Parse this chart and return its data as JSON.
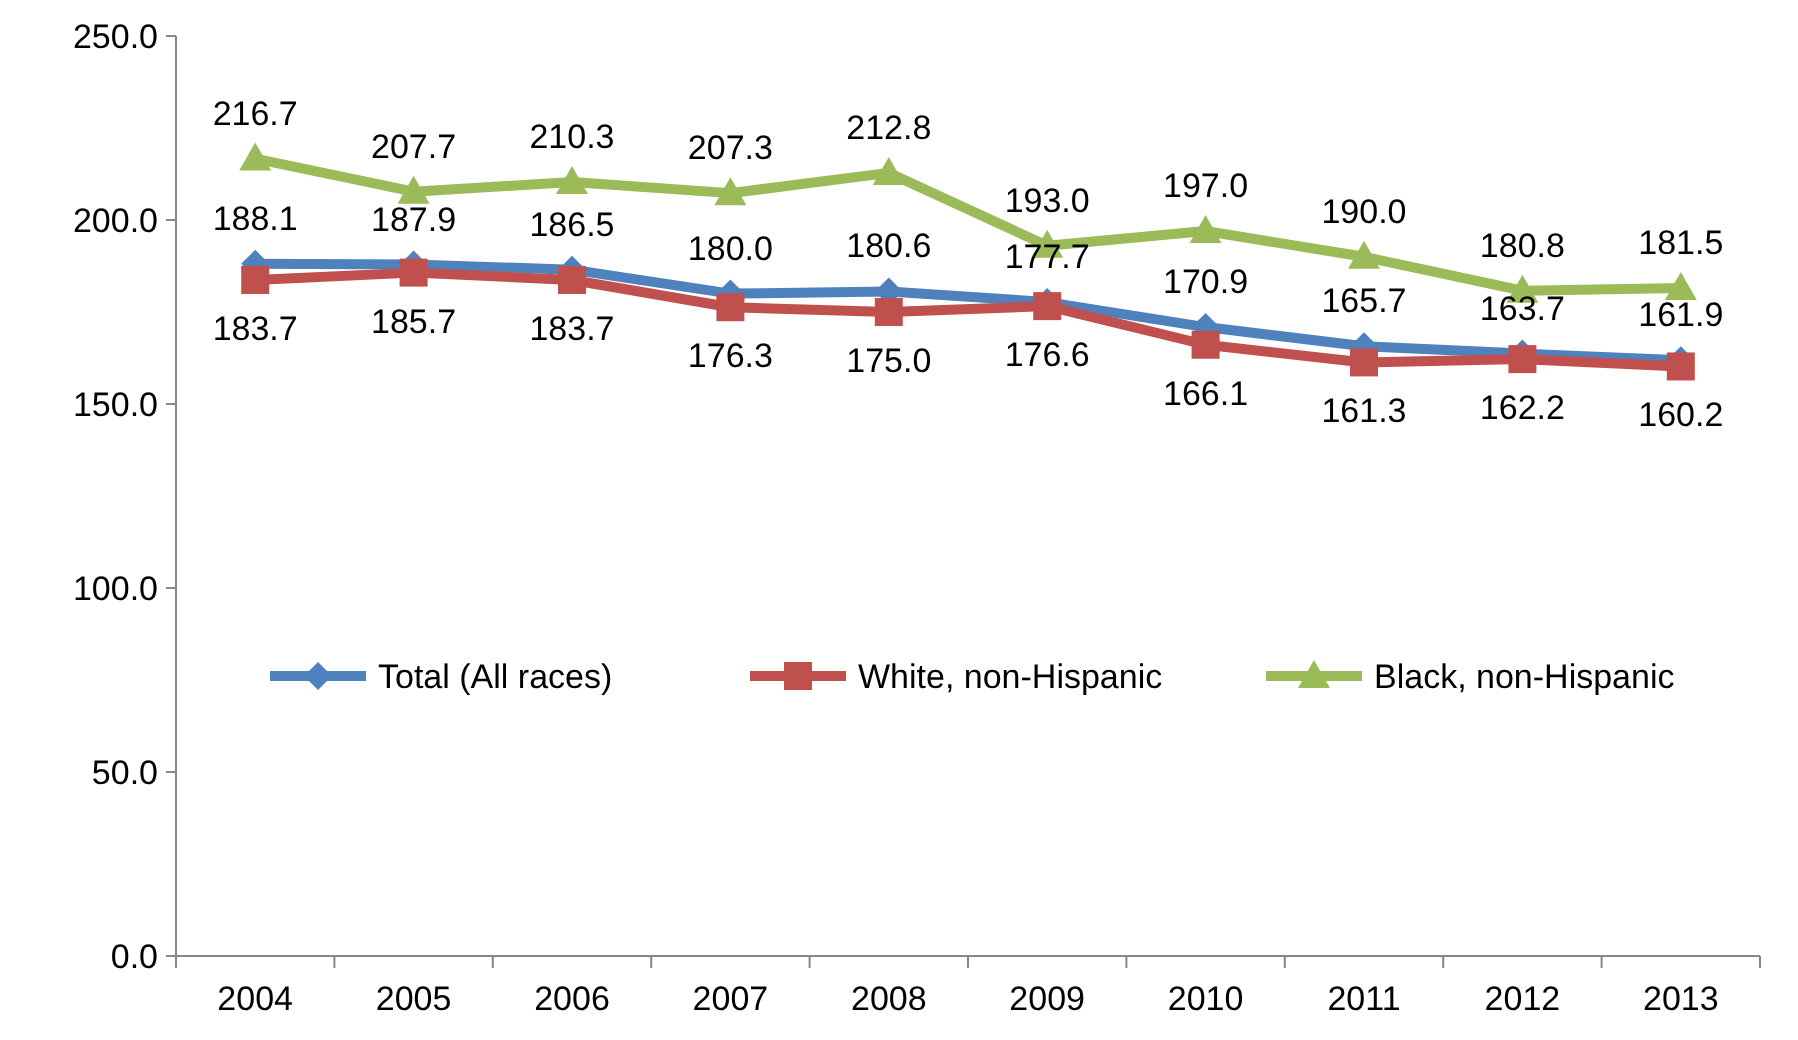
{
  "chart_data": {
    "type": "line",
    "categories": [
      "2004",
      "2005",
      "2006",
      "2007",
      "2008",
      "2009",
      "2010",
      "2011",
      "2012",
      "2013"
    ],
    "series": [
      {
        "name": "Total (All races)",
        "color": "#4f81bd",
        "marker": "diamond",
        "values": [
          188.1,
          187.9,
          186.5,
          180.0,
          180.6,
          177.7,
          170.9,
          165.7,
          163.7,
          161.9
        ],
        "value_labels": [
          "188.1",
          "187.9",
          "186.5",
          "180.0",
          "180.6",
          "177.7",
          "170.9",
          "165.7",
          "163.7",
          "161.9"
        ]
      },
      {
        "name": "White, non-Hispanic",
        "color": "#c0504d",
        "marker": "square",
        "values": [
          183.7,
          185.7,
          183.7,
          176.3,
          175.0,
          176.6,
          166.1,
          161.3,
          162.2,
          160.2
        ],
        "value_labels": [
          "183.7",
          "185.7",
          "183.7",
          "176.3",
          "175.0",
          "176.6",
          "166.1",
          "161.3",
          "162.2",
          "160.2"
        ]
      },
      {
        "name": "Black, non-Hispanic",
        "color": "#9bbb59",
        "marker": "triangle",
        "values": [
          216.7,
          207.7,
          210.3,
          207.3,
          212.8,
          193.0,
          197.0,
          190.0,
          180.8,
          181.5
        ],
        "value_labels": [
          "216.7",
          "207.7",
          "210.3",
          "207.3",
          "212.8",
          "193.0",
          "197.0",
          "190.0",
          "180.8",
          "181.5"
        ]
      }
    ],
    "ylim": [
      0,
      250
    ],
    "yticks": [
      {
        "value": 0,
        "label": "0.0"
      },
      {
        "value": 50,
        "label": "50.0"
      },
      {
        "value": 100,
        "label": "100.0"
      },
      {
        "value": 150,
        "label": "150.0"
      },
      {
        "value": 200,
        "label": "200.0"
      },
      {
        "value": 250,
        "label": "250.0"
      }
    ],
    "legend": "right",
    "line_style": "solid"
  }
}
